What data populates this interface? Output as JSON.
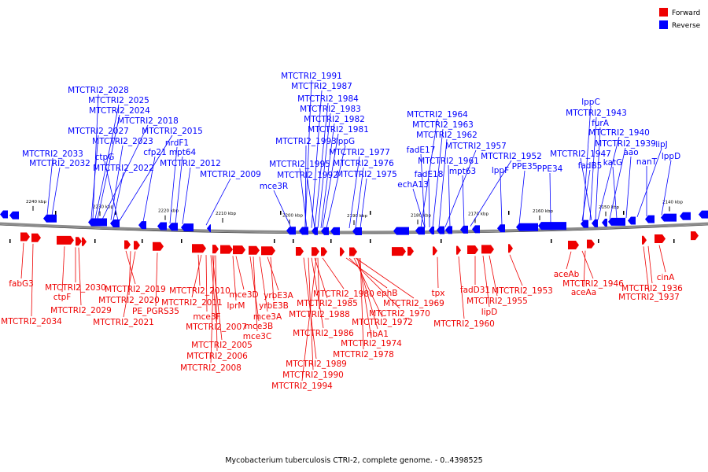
{
  "caption": "Mycobacterium tuberculosis CTRI-2, complete genome. - 0..4398525",
  "legend": [
    {
      "label": "Forward",
      "color": "#ee0000"
    },
    {
      "label": "Reverse",
      "color": "#0000ff"
    }
  ],
  "strand_colors": {
    "forward": "#ee0000",
    "reverse": "#0000ff",
    "backbone": "#888888"
  },
  "ticks": [
    "2240 kbp",
    "2230 kbp",
    "2220 kbp",
    "2210 kbp",
    "2200 kbp",
    "2190 kbp",
    "2180 kbp",
    "2170 kbp",
    "2160 kbp",
    "2150 kbp",
    "2140 kbp"
  ],
  "reverse_labels": [
    "MTCTRI2_2033",
    "MTCTRI2_2032",
    "MTCTRI2_2028",
    "MTCTRI2_2025",
    "MTCTRI2_2024",
    "MTCTRI2_2027",
    "MTCTRI2_2018",
    "MTCTRI2_2023",
    "MTCTRI2_2015",
    "ctpG",
    "cfp21",
    "mpt64",
    "MTCTRI2_2022",
    "nrdF1",
    "MTCTRI2_2012",
    "MTCTRI2_2009",
    "mce3R",
    "MTCTRI2_1991",
    "MTCTRI2_1987",
    "MTCTRI2_1984",
    "MTCTRI2_1983",
    "MTCTRI2_1982",
    "MTCTRI2_1981",
    "MTCTRI2_1993",
    "lppG",
    "MTCTRI2_1977",
    "MTCTRI2_1995",
    "MTCTRI2_1976",
    "MTCTRI2_1992",
    "MTCTRI2_1975",
    "MTCTRI2_1964",
    "MTCTRI2_1963",
    "MTCTRI2_1962",
    "fadE17",
    "MTCTRI2_1957",
    "MTCTRI2_1961",
    "fadE18",
    "mpt63",
    "echA13",
    "MTCTRI2_1952",
    "lppF",
    "PPE35",
    "PPE34",
    "lppC",
    "MTCTRI2_1943",
    "furA",
    "MTCTRI2_1940",
    "MTCTRI2_1947",
    "MTCTRI2_1939",
    "fadB5",
    "katG",
    "aao",
    "lipJ",
    "nanT",
    "lppD"
  ],
  "forward_labels": [
    "fabG3",
    "MTCTRI2_2034",
    "ctpF",
    "MTCTRI2_2030",
    "MTCTRI2_2029",
    "MTCTRI2_2019",
    "MTCTRI2_2020",
    "MTCTRI2_2021",
    "PE_PGRS35",
    "MTCTRI2_2010",
    "MTCTRI2_2011",
    "mce3F",
    "MTCTRI2_2007",
    "MTCTRI2_2005",
    "MTCTRI2_2006",
    "MTCTRI2_2008",
    "lprM",
    "mce3D",
    "mce3B",
    "mce3C",
    "mce3A",
    "yrbE3A",
    "yrbE3B",
    "MTCTRI2_1985",
    "MTCTRI2_1988",
    "MTCTRI2_1986",
    "MTCTRI2_1989",
    "MTCTRI2_1990",
    "MTCTRI2_1994",
    "MTCTRI2_1980",
    "ephB",
    "MTCTRI2_1970",
    "MTCTRI2_1972",
    "MTCTRI2_1969",
    "ribA1",
    "MTCTRI2_1974",
    "MTCTRI2_1978",
    "tpx",
    "fadD31",
    "lipD",
    "MTCTRI2_1960",
    "MTCTRI2_1955",
    "MTCTRI2_1953",
    "aceAb",
    "MTCTRI2_1946",
    "aceAa",
    "cinA",
    "MTCTRI2_1936",
    "MTCTRI2_1937"
  ]
}
